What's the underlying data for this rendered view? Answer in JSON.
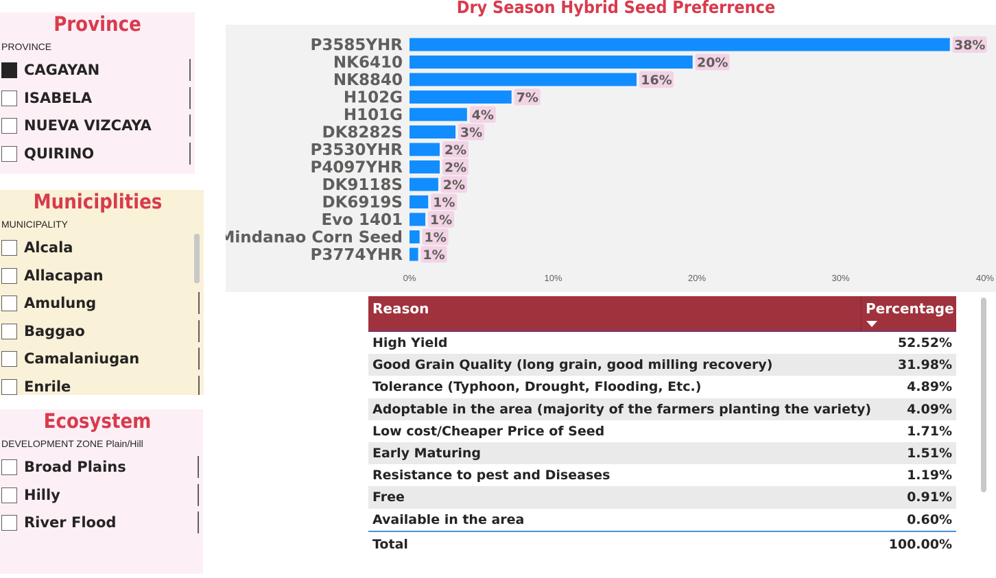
{
  "province": {
    "title": "Province",
    "header": "PROVINCE",
    "items": [
      {
        "label": "CAGAYAN",
        "checked": true
      },
      {
        "label": "ISABELA",
        "checked": false
      },
      {
        "label": "NUEVA VIZCAYA",
        "checked": false
      },
      {
        "label": "QUIRINO",
        "checked": false
      }
    ]
  },
  "municipalities": {
    "title": "Municiplities",
    "header": "MUNICIPALITY",
    "items": [
      {
        "label": "Alcala",
        "checked": false
      },
      {
        "label": "Allacapan",
        "checked": false
      },
      {
        "label": "Amulung",
        "checked": false
      },
      {
        "label": "Baggao",
        "checked": false
      },
      {
        "label": "Camalaniugan",
        "checked": false
      },
      {
        "label": "Enrile",
        "checked": false
      }
    ]
  },
  "ecosystem": {
    "title": "Ecosystem",
    "header": "DEVELOPMENT ZONE Plain/Hill",
    "items": [
      {
        "label": "Broad Plains",
        "checked": false
      },
      {
        "label": "Hilly",
        "checked": false
      },
      {
        "label": "River Flood",
        "checked": false
      }
    ]
  },
  "chart_title": "Dry Season Hybrid Seed Preferrence",
  "chart_data": {
    "type": "bar",
    "orientation": "horizontal",
    "title": "Dry Season Hybrid Seed Preferrence",
    "categories": [
      "P3585YHR",
      "NK6410",
      "NK8840",
      "H102G",
      "H101G",
      "DK8282S",
      "P3530YHR",
      "P4097YHR",
      "DK9118S",
      "DK6919S",
      "Evo 1401",
      "Mindanao Corn Seed",
      "P3774YHR"
    ],
    "values": [
      37.6,
      19.7,
      15.8,
      7.1,
      4.0,
      3.2,
      2.1,
      2.1,
      2.0,
      1.3,
      1.1,
      0.7,
      0.6
    ],
    "data_labels": [
      "38%",
      "20%",
      "16%",
      "7%",
      "4%",
      "3%",
      "2%",
      "2%",
      "2%",
      "1%",
      "1%",
      "1%",
      "1%"
    ],
    "x_ticks": [
      "0%",
      "10%",
      "20%",
      "30%",
      "40%"
    ],
    "xlim": [
      0,
      40
    ],
    "bar_color": "#118dff",
    "label_bg_color": "#f3d3e6",
    "grid": false
  },
  "table": {
    "headers": {
      "reason": "Reason",
      "percentage": "Percentage"
    },
    "rows": [
      {
        "reason": "High Yield",
        "percentage": "52.52%"
      },
      {
        "reason": "Good Grain Quality (long grain, good milling recovery)",
        "percentage": "31.98%"
      },
      {
        "reason": "Tolerance (Typhoon, Drought, Flooding, Etc.)",
        "percentage": "4.89%"
      },
      {
        "reason": "Adoptable in the area (majority of the farmers planting the variety)",
        "percentage": "4.09%"
      },
      {
        "reason": "Low cost/Cheaper Price of Seed",
        "percentage": "1.71%"
      },
      {
        "reason": "Early Maturing",
        "percentage": "1.51%"
      },
      {
        "reason": "Resistance to pest and Diseases",
        "percentage": "1.19%"
      },
      {
        "reason": "Free",
        "percentage": "0.91%"
      },
      {
        "reason": "Available in the area",
        "percentage": "0.60%"
      }
    ],
    "total": {
      "label": "Total",
      "percentage": "100.00%"
    },
    "header_color": "#a0323d"
  }
}
